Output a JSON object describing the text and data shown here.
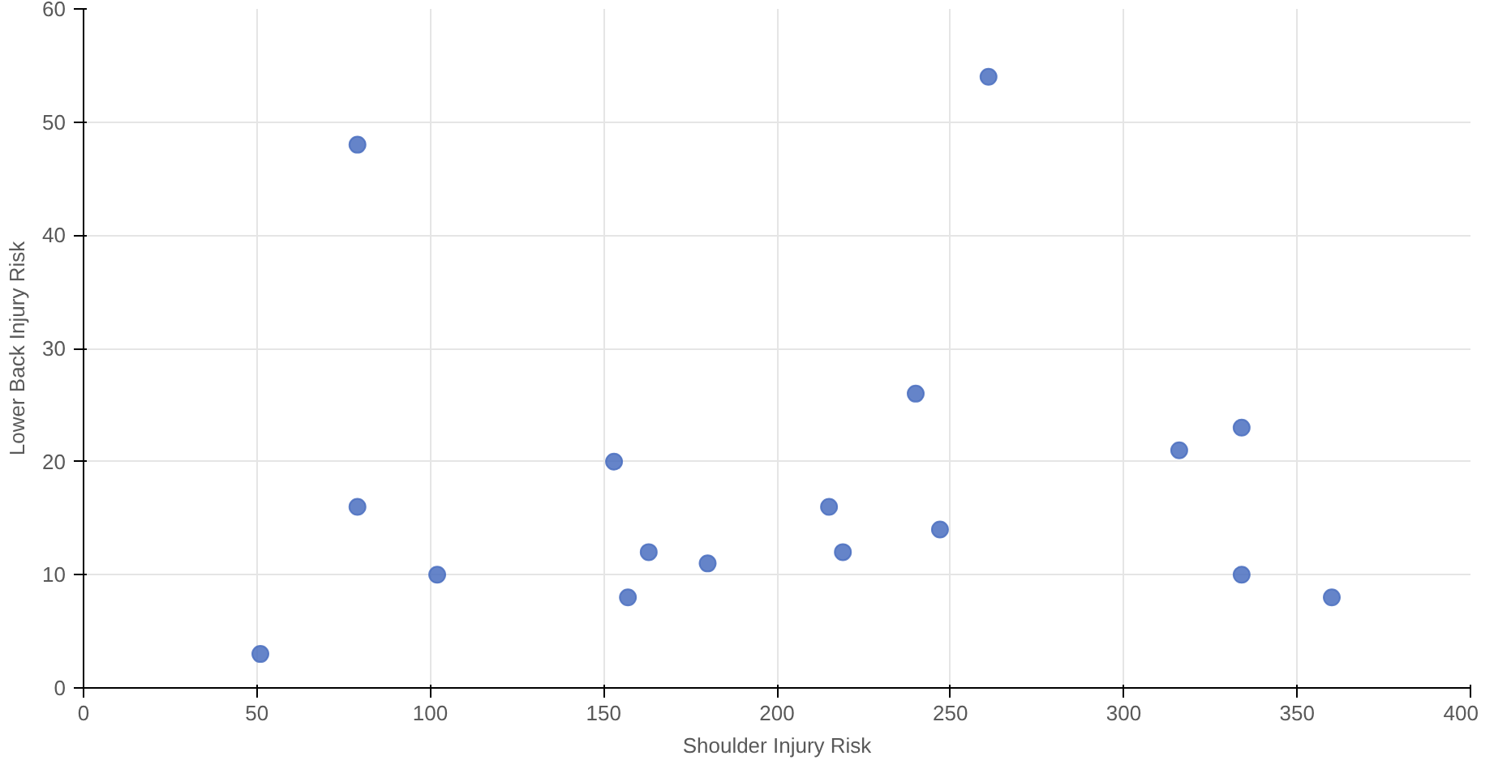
{
  "chart_data": {
    "type": "scatter",
    "xlabel": "Shoulder Injury Risk",
    "ylabel": "Lower Back Injury Risk",
    "series": [
      {
        "color": "#4a6fc0",
        "x": [
          51,
          79,
          79,
          102,
          153,
          157,
          163,
          180,
          215,
          219,
          240,
          247,
          261,
          316,
          334,
          334,
          360
        ],
        "values": [
          3,
          48,
          16,
          10,
          20,
          8,
          12,
          11,
          16,
          12,
          26,
          14,
          54,
          21,
          23,
          10,
          8
        ]
      }
    ],
    "xlim": [
      0,
      400
    ],
    "xticks": [
      0,
      50,
      100,
      150,
      200,
      250,
      300,
      350,
      400
    ],
    "ylim": [
      0,
      60
    ],
    "yticks": [
      0,
      10,
      20,
      30,
      40,
      50,
      60
    ],
    "grid": true,
    "marker": "circle"
  }
}
